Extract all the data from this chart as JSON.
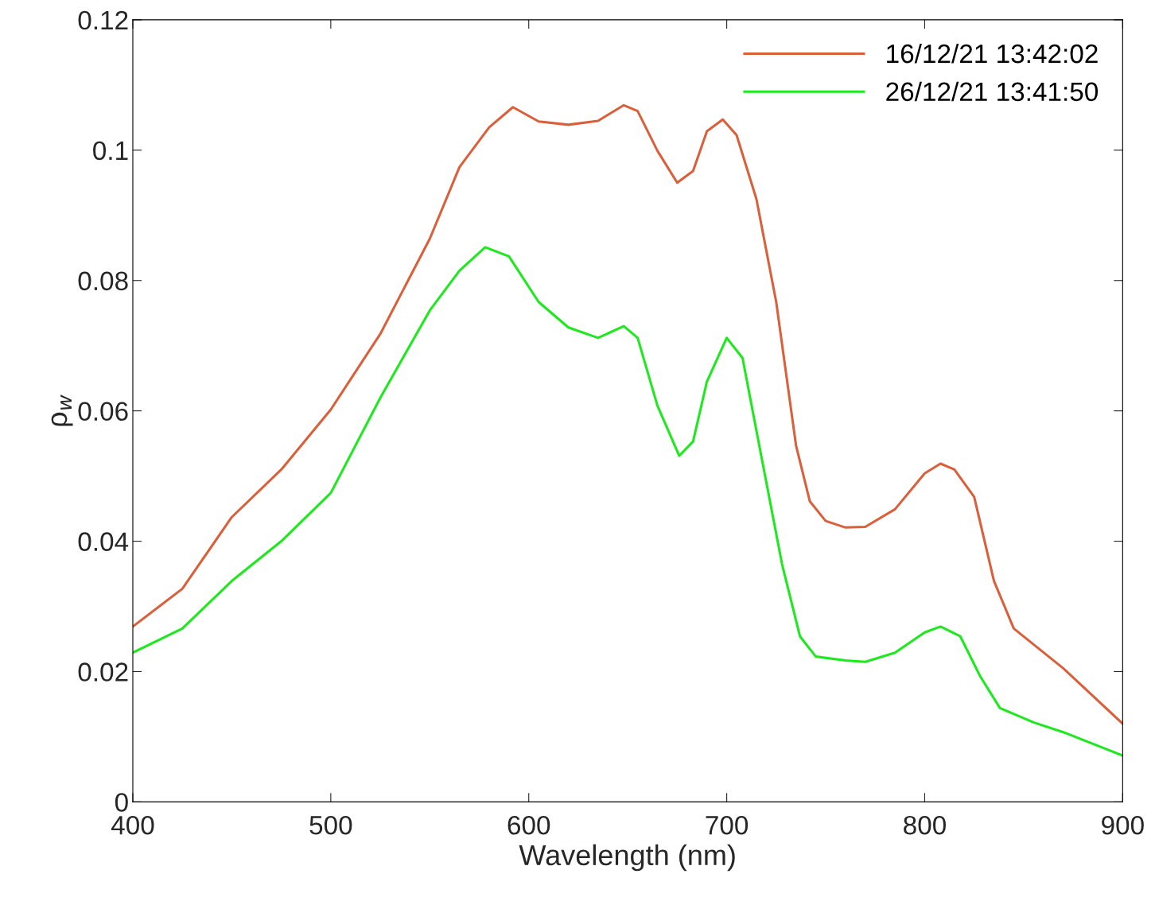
{
  "chart_data": {
    "type": "line",
    "xlabel": "Wavelength (nm)",
    "ylabel": "ρ$_{w}$",
    "xlim": [
      400,
      900
    ],
    "xticks": [
      400,
      500,
      600,
      700,
      800,
      900
    ],
    "ylim": [
      0,
      0.12
    ],
    "yticks": [
      0,
      0.02,
      0.04,
      0.06,
      0.08,
      0.1,
      0.12
    ],
    "grid": false,
    "legend": "top right",
    "marker": "none",
    "line_style": "solid",
    "series": [
      {
        "name": "16/12/21 13:42:02",
        "color": "#d9603b",
        "x": [
          400,
          425,
          450,
          475,
          500,
          525,
          550,
          565,
          580,
          592,
          605,
          620,
          635,
          648,
          655,
          665,
          675,
          683,
          690,
          698,
          705,
          715,
          725,
          735,
          742,
          750,
          760,
          770,
          785,
          800,
          808,
          815,
          825,
          835,
          845,
          870,
          900
        ],
        "values": [
          0.0269,
          0.0327,
          0.0437,
          0.051,
          0.0602,
          0.0718,
          0.0864,
          0.0974,
          0.1035,
          0.1066,
          0.1044,
          0.1039,
          0.1045,
          0.1069,
          0.106,
          0.0999,
          0.095,
          0.0968,
          0.1029,
          0.1047,
          0.1023,
          0.0925,
          0.0767,
          0.0547,
          0.0461,
          0.0431,
          0.0421,
          0.0422,
          0.0449,
          0.0504,
          0.0519,
          0.051,
          0.0468,
          0.0339,
          0.0266,
          0.0205,
          0.012
        ]
      },
      {
        "name": "26/12/21 13:41:50",
        "color": "#1ee81e",
        "x": [
          400,
          425,
          450,
          475,
          500,
          525,
          550,
          565,
          578,
          590,
          605,
          620,
          635,
          648,
          655,
          665,
          676,
          683,
          690,
          700,
          708,
          718,
          728,
          737,
          745,
          760,
          770,
          785,
          800,
          808,
          818,
          828,
          838,
          855,
          870,
          900
        ],
        "values": [
          0.0229,
          0.0266,
          0.0339,
          0.04,
          0.0474,
          0.062,
          0.0754,
          0.0815,
          0.0851,
          0.0837,
          0.0767,
          0.0728,
          0.0712,
          0.073,
          0.0712,
          0.0608,
          0.0531,
          0.0553,
          0.0645,
          0.0712,
          0.0681,
          0.0522,
          0.0364,
          0.0254,
          0.0223,
          0.0217,
          0.0215,
          0.0229,
          0.026,
          0.0269,
          0.0254,
          0.0193,
          0.0144,
          0.0122,
          0.0107,
          0.0071
        ]
      }
    ]
  }
}
